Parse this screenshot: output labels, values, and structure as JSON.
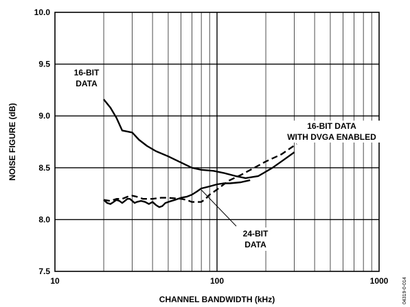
{
  "chart_data": {
    "type": "line",
    "xscale": "log",
    "xlim": [
      10,
      1000
    ],
    "ylim": [
      7.5,
      10.0
    ],
    "xlabel": "CHANNEL BANDWIDTH (kHz)",
    "ylabel": "NOISE FIGURE (dB)",
    "x_ticks": [
      "10",
      "100",
      "1000"
    ],
    "y_ticks": [
      "7.5",
      "8.0",
      "8.5",
      "9.0",
      "9.5",
      "10.0"
    ],
    "grid": true,
    "series": [
      {
        "key": "s16",
        "line_style": "solid",
        "points": [
          [
            20,
            9.16
          ],
          [
            22,
            9.08
          ],
          [
            24,
            8.98
          ],
          [
            26,
            8.86
          ],
          [
            28,
            8.85
          ],
          [
            30,
            8.84
          ],
          [
            33,
            8.77
          ],
          [
            37,
            8.71
          ],
          [
            42,
            8.66
          ],
          [
            50,
            8.61
          ],
          [
            60,
            8.55
          ],
          [
            70,
            8.5
          ],
          [
            80,
            8.48
          ],
          [
            95,
            8.47
          ],
          [
            110,
            8.45
          ],
          [
            130,
            8.42
          ],
          [
            150,
            8.4
          ],
          [
            180,
            8.42
          ],
          [
            220,
            8.5
          ],
          [
            260,
            8.58
          ],
          [
            300,
            8.65
          ]
        ]
      },
      {
        "key": "s24",
        "line_style": "solid",
        "points": [
          [
            20,
            8.19
          ],
          [
            21,
            8.16
          ],
          [
            22,
            8.15
          ],
          [
            23,
            8.17
          ],
          [
            24,
            8.19
          ],
          [
            25,
            8.18
          ],
          [
            26,
            8.16
          ],
          [
            27,
            8.18
          ],
          [
            28,
            8.2
          ],
          [
            29,
            8.2
          ],
          [
            30,
            8.18
          ],
          [
            31,
            8.16
          ],
          [
            32,
            8.17
          ],
          [
            34,
            8.18
          ],
          [
            36,
            8.17
          ],
          [
            38,
            8.15
          ],
          [
            40,
            8.17
          ],
          [
            42,
            8.14
          ],
          [
            44,
            8.12
          ],
          [
            46,
            8.13
          ],
          [
            48,
            8.16
          ],
          [
            50,
            8.17
          ],
          [
            55,
            8.19
          ],
          [
            60,
            8.21
          ],
          [
            65,
            8.22
          ],
          [
            70,
            8.24
          ],
          [
            75,
            8.27
          ],
          [
            80,
            8.3
          ],
          [
            90,
            8.32
          ],
          [
            100,
            8.34
          ],
          [
            110,
            8.35
          ],
          [
            120,
            8.35
          ],
          [
            140,
            8.36
          ],
          [
            160,
            8.38
          ]
        ]
      },
      {
        "key": "sdvga",
        "line_style": "dashed",
        "points": [
          [
            20,
            8.19
          ],
          [
            22,
            8.18
          ],
          [
            24,
            8.2
          ],
          [
            26,
            8.2
          ],
          [
            28,
            8.22
          ],
          [
            30,
            8.23
          ],
          [
            32,
            8.22
          ],
          [
            35,
            8.2
          ],
          [
            40,
            8.2
          ],
          [
            45,
            8.21
          ],
          [
            50,
            8.21
          ],
          [
            60,
            8.2
          ],
          [
            65,
            8.19
          ],
          [
            70,
            8.17
          ],
          [
            75,
            8.17
          ],
          [
            80,
            8.17
          ],
          [
            85,
            8.2
          ],
          [
            90,
            8.24
          ],
          [
            100,
            8.29
          ],
          [
            110,
            8.34
          ],
          [
            120,
            8.38
          ],
          [
            140,
            8.43
          ],
          [
            170,
            8.5
          ],
          [
            200,
            8.56
          ],
          [
            250,
            8.63
          ],
          [
            310,
            8.73
          ]
        ]
      }
    ],
    "annotations": {
      "s16_label": [
        "16-BIT",
        "DATA"
      ],
      "sdvga_label": [
        "16-BIT DATA",
        "WITH DVGA ENABLED"
      ],
      "s24_label": [
        "24-BIT",
        "DATA"
      ]
    },
    "figure_code": "04319-0-014"
  }
}
